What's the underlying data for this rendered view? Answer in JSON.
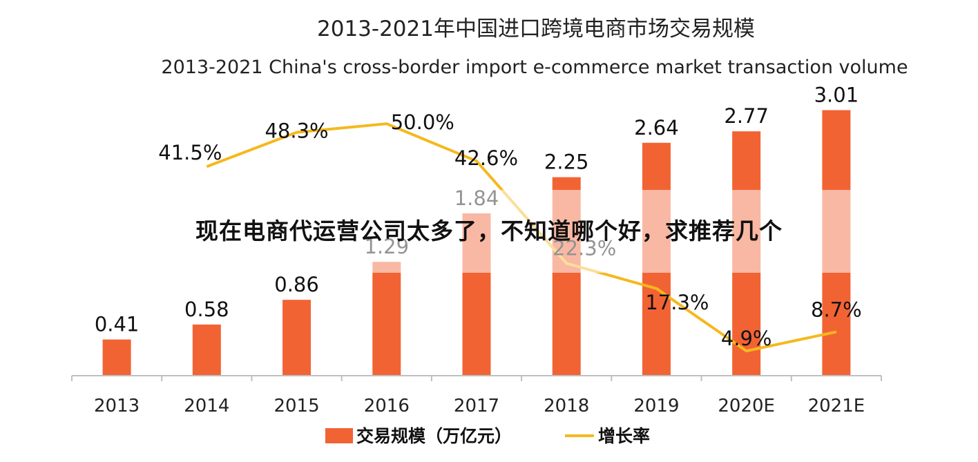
{
  "overlay_caption": "现在电商代运营公司太多了，不知道哪个好，求推荐几个",
  "chart_data": {
    "type": "bar+line",
    "title": "2013-2021年中国进口跨境电商市场交易规模",
    "subtitle": "2013-2021 China's cross-border import e-commerce market transaction volume",
    "categories": [
      "2013",
      "2014",
      "2015",
      "2016",
      "2017",
      "2018",
      "2019",
      "2020E",
      "2021E"
    ],
    "series": [
      {
        "name": "交易规模（万亿元）",
        "kind": "bar",
        "color": "#f26334",
        "values": [
          0.41,
          0.58,
          0.86,
          1.29,
          1.84,
          2.25,
          2.64,
          2.77,
          3.01
        ],
        "labels": [
          "0.41",
          "0.58",
          "0.86",
          "1.29",
          "1.84",
          "2.25",
          "2.64",
          "2.77",
          "3.01"
        ]
      },
      {
        "name": "增长率",
        "kind": "line",
        "color": "#f5b81d",
        "values": [
          41.5,
          48.3,
          50.0,
          42.6,
          22.3,
          17.3,
          4.9,
          8.7
        ],
        "x": [
          "2014",
          "2015",
          "2016",
          "2017",
          "2018",
          "2019",
          "2020E",
          "2021E"
        ],
        "labels": [
          "41.5%",
          "48.3%",
          "50.0%",
          "42.6%",
          "22.3%",
          "17.3%",
          "4.9%",
          "8.7%"
        ]
      }
    ],
    "bar_ylim": [
      0,
      3.1
    ],
    "line_ylim": [
      0,
      54
    ],
    "grid": false,
    "legend_position": "bottom"
  }
}
